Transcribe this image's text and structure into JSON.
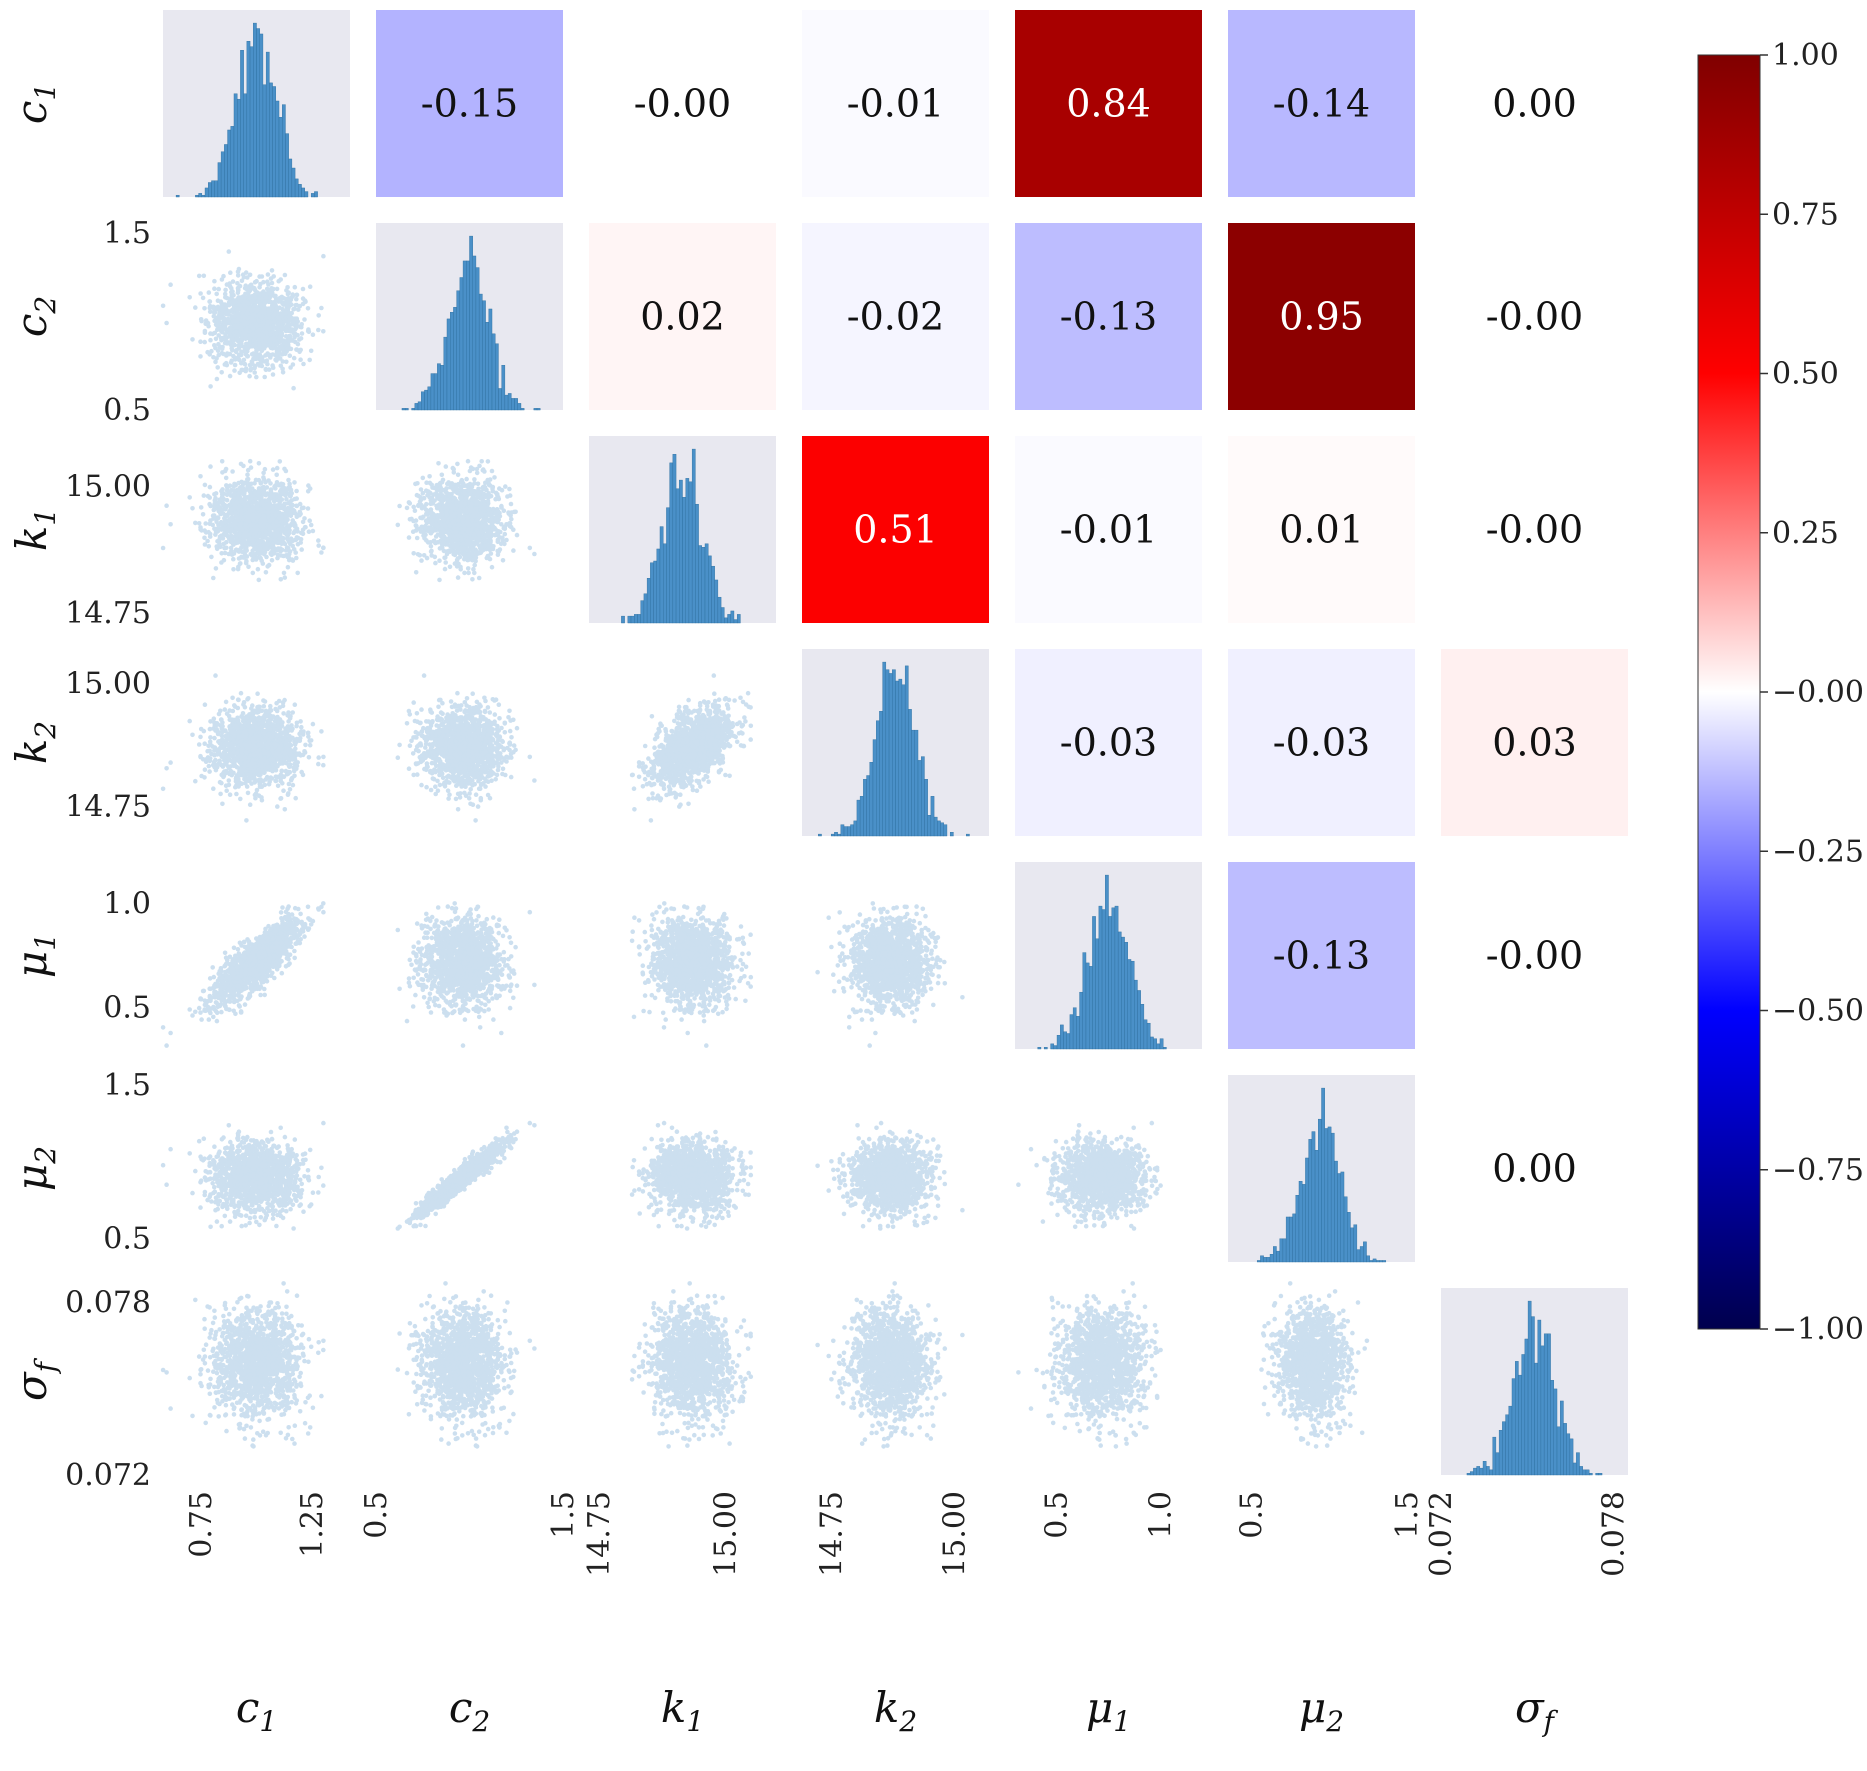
{
  "chart_data": {
    "type": "pairplot",
    "title": "",
    "variables": [
      {
        "key": "c1",
        "symbol": "c",
        "sub": "1",
        "ticks": [
          {
            "value": 0.75,
            "label": "0.75"
          },
          {
            "value": 1.25,
            "label": "1.25"
          }
        ],
        "range": [
          0.58,
          1.42
        ],
        "mean": 1.0,
        "sd": 0.1
      },
      {
        "key": "c2",
        "symbol": "c",
        "sub": "2",
        "ticks": [
          {
            "value": 0.5,
            "label": "0.5"
          },
          {
            "value": 1.5,
            "label": "1.5"
          }
        ],
        "range": [
          0.5,
          1.5
        ],
        "mean": 0.97,
        "sd": 0.11
      },
      {
        "key": "k1",
        "symbol": "k",
        "sub": "1",
        "ticks": [
          {
            "value": 14.75,
            "label": "14.75"
          },
          {
            "value": 15.0,
            "label": "15.00"
          }
        ],
        "range": [
          14.73,
          15.1
        ],
        "mean": 14.935,
        "sd": 0.04
      },
      {
        "key": "k2",
        "symbol": "k",
        "sub": "2",
        "ticks": [
          {
            "value": 14.75,
            "label": "14.75"
          },
          {
            "value": 15.0,
            "label": "15.00"
          }
        ],
        "range": [
          14.69,
          15.07
        ],
        "mean": 14.87,
        "sd": 0.04
      },
      {
        "key": "mu1",
        "symbol": "μ",
        "sub": "1",
        "ticks": [
          {
            "value": 0.5,
            "label": "0.5"
          },
          {
            "value": 1.0,
            "label": "1.0"
          }
        ],
        "range": [
          0.3,
          1.2
        ],
        "mean": 0.72,
        "sd": 0.1
      },
      {
        "key": "mu2",
        "symbol": "μ",
        "sub": "2",
        "ticks": [
          {
            "value": 0.5,
            "label": "0.5"
          },
          {
            "value": 1.5,
            "label": "1.5"
          }
        ],
        "range": [
          0.35,
          1.55
        ],
        "mean": 0.9,
        "sd": 0.11
      },
      {
        "key": "sigma_f",
        "symbol": "σ",
        "sub": "f",
        "ticks": [
          {
            "value": 0.072,
            "label": "0.072"
          },
          {
            "value": 0.078,
            "label": "0.078"
          }
        ],
        "range": [
          0.072,
          0.0785
        ],
        "mean": 0.0759,
        "sd": 0.0009
      }
    ],
    "correlations": [
      [
        1.0,
        -0.15,
        -0.0,
        -0.01,
        0.84,
        -0.14,
        0.0
      ],
      [
        -0.15,
        1.0,
        0.02,
        -0.02,
        -0.13,
        0.95,
        -0.0
      ],
      [
        -0.0,
        0.02,
        1.0,
        0.51,
        -0.01,
        0.01,
        -0.0
      ],
      [
        -0.01,
        -0.02,
        0.51,
        1.0,
        -0.03,
        -0.03,
        0.03
      ],
      [
        0.84,
        -0.13,
        -0.01,
        -0.03,
        1.0,
        -0.13,
        -0.0
      ],
      [
        -0.14,
        0.95,
        0.01,
        -0.03,
        -0.13,
        1.0,
        0.0
      ],
      [
        0.0,
        -0.0,
        -0.0,
        0.03,
        -0.0,
        0.0,
        1.0
      ]
    ],
    "correlation_labels": [
      [
        null,
        "-0.15",
        "-0.00",
        "-0.01",
        "0.84",
        "-0.14",
        "0.00"
      ],
      [
        null,
        null,
        "0.02",
        "-0.02",
        "-0.13",
        "0.95",
        "-0.00"
      ],
      [
        null,
        null,
        null,
        "0.51",
        "-0.01",
        "0.01",
        "-0.00"
      ],
      [
        null,
        null,
        null,
        null,
        "-0.03",
        "-0.03",
        "0.03"
      ],
      [
        null,
        null,
        null,
        null,
        null,
        "-0.13",
        "-0.00"
      ],
      [
        null,
        null,
        null,
        null,
        null,
        null,
        "0.00"
      ],
      [
        null,
        null,
        null,
        null,
        null,
        null,
        null
      ]
    ],
    "lower_triangle": "scatter",
    "diagonal": "histogram",
    "upper_triangle": "correlation heatmap",
    "sample_color": "#4a90c8",
    "diag_background": "#e8e8f0",
    "colorbar": {
      "range": [
        -1.0,
        1.0
      ],
      "ticks": [
        1.0,
        0.75,
        0.5,
        0.25,
        0.0,
        -0.25,
        -0.5,
        -0.75,
        -1.0
      ],
      "tick_labels": [
        "1.00",
        "0.75",
        "0.50",
        "0.25",
        "−0.00",
        "−0.25",
        "−0.50",
        "−0.75",
        "−1.00"
      ],
      "colormap": "seismic",
      "placement": "right"
    }
  }
}
